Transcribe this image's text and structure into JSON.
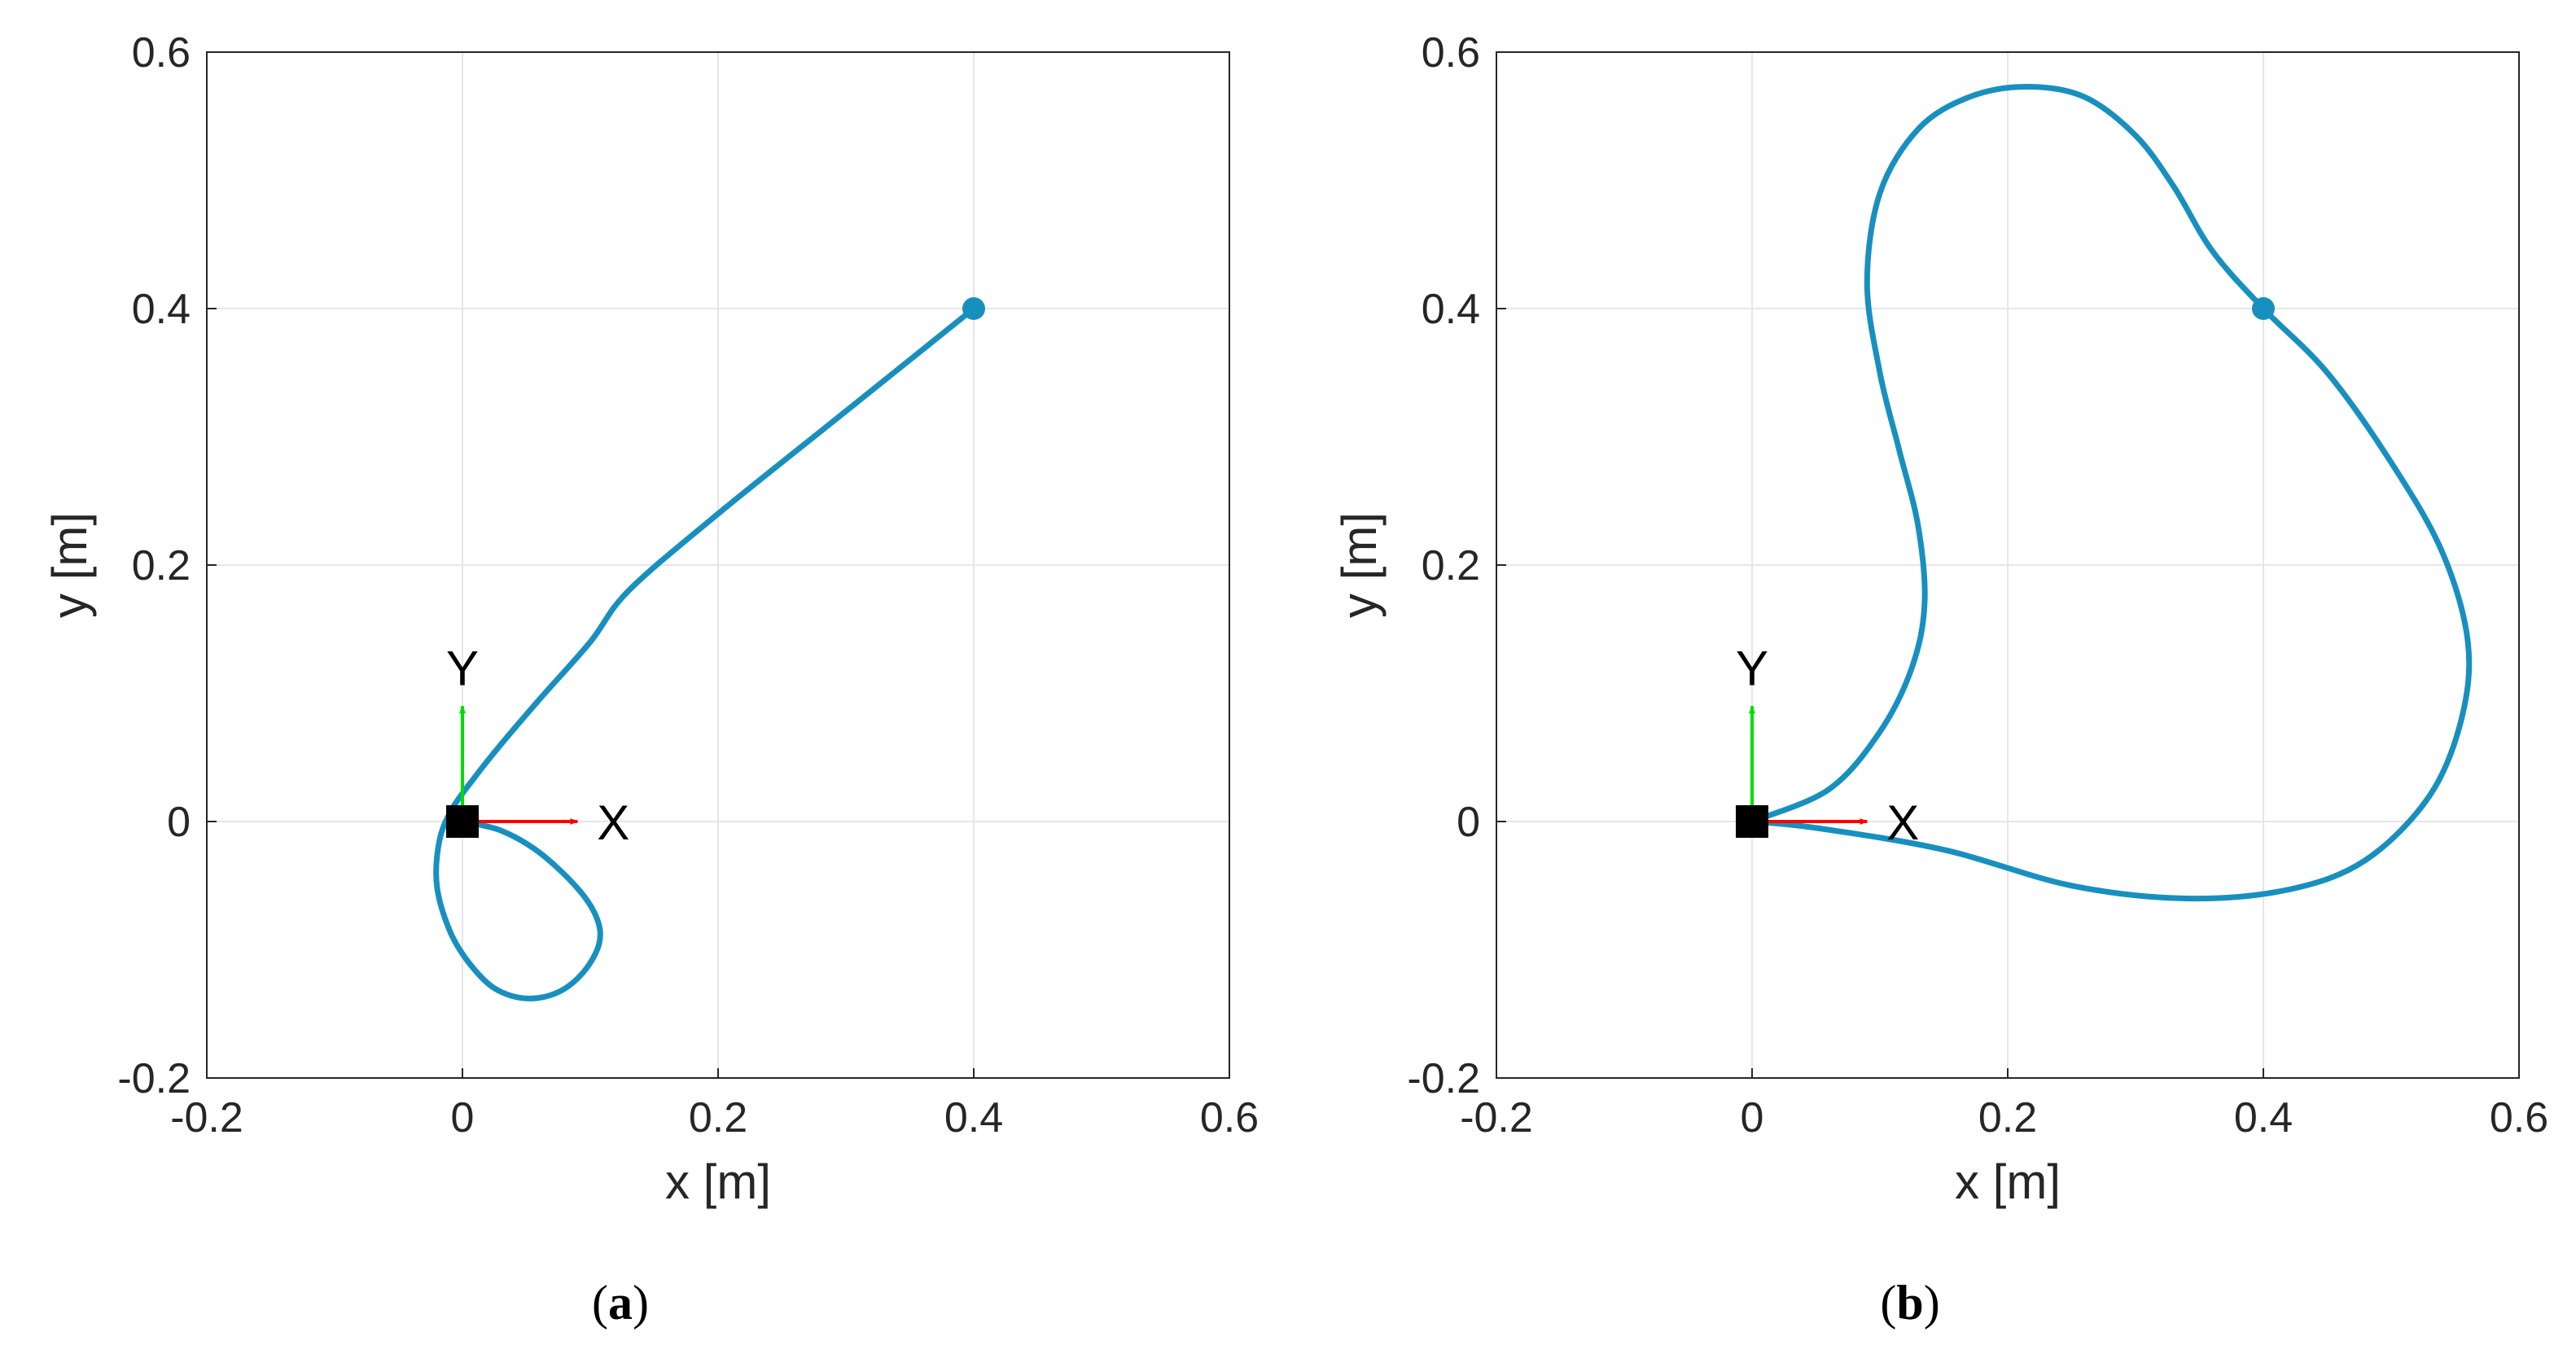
{
  "chart_data": [
    {
      "type": "line",
      "caption": {
        "open": "(",
        "letter": "a",
        "close": ")"
      },
      "xlabel": "x [m]",
      "ylabel": "y [m]",
      "xlim": [
        -0.2,
        0.6
      ],
      "ylim": [
        -0.2,
        0.6
      ],
      "xticks": [
        -0.2,
        0,
        0.2,
        0.4,
        0.6
      ],
      "xtick_labels": [
        "-0.2",
        "0",
        "0.2",
        "0.4",
        "0.6"
      ],
      "yticks": [
        -0.2,
        0,
        0.2,
        0.4,
        0.6
      ],
      "ytick_labels": [
        "-0.2",
        "0",
        "0.2",
        "0.4",
        "0.6"
      ],
      "grid": true,
      "line_color": "#1890BF",
      "series": [
        {
          "name": "trajectory",
          "x": [
            0.0,
            0.03,
            0.06,
            0.09,
            0.105,
            0.107,
            0.095,
            0.075,
            0.05,
            0.025,
            0.005,
            -0.01,
            -0.02,
            -0.018,
            -0.008,
            0.01,
            0.03,
            0.06,
            0.1,
            0.13,
            0.2,
            0.3,
            0.4
          ],
          "y": [
            0.0,
            -0.007,
            -0.024,
            -0.052,
            -0.075,
            -0.095,
            -0.117,
            -0.133,
            -0.138,
            -0.13,
            -0.11,
            -0.085,
            -0.05,
            -0.015,
            0.01,
            0.035,
            0.06,
            0.095,
            0.14,
            0.18,
            0.24,
            0.32,
            0.4
          ]
        }
      ],
      "start_marker": {
        "x": 0.4,
        "y": 0.4,
        "color": "#1890BF"
      },
      "origin_marker": {
        "x": 0,
        "y": 0,
        "color": "#000000"
      },
      "frame": {
        "x_axis_label": "X",
        "y_axis_label": "Y",
        "x_axis_color": "#FF0000",
        "y_axis_color": "#00DD00",
        "arrow_length": 0.09
      }
    },
    {
      "type": "line",
      "caption": {
        "open": "(",
        "letter": "b",
        "close": ")"
      },
      "xlabel": "x [m]",
      "ylabel": "y [m]",
      "xlim": [
        -0.2,
        0.6
      ],
      "ylim": [
        -0.2,
        0.6
      ],
      "xticks": [
        -0.2,
        0,
        0.2,
        0.4,
        0.6
      ],
      "xtick_labels": [
        "-0.2",
        "0",
        "0.2",
        "0.4",
        "0.6"
      ],
      "yticks": [
        -0.2,
        0,
        0.2,
        0.4,
        0.6
      ],
      "ytick_labels": [
        "-0.2",
        "0",
        "0.2",
        "0.4",
        "0.6"
      ],
      "grid": true,
      "line_color": "#1890BF",
      "series": [
        {
          "name": "trajectory",
          "x": [
            0.0,
            0.06,
            0.1,
            0.125,
            0.135,
            0.13,
            0.115,
            0.1,
            0.09,
            0.1,
            0.13,
            0.17,
            0.215,
            0.26,
            0.3,
            0.33,
            0.36,
            0.4,
            0.45,
            0.5,
            0.54,
            0.56,
            0.555,
            0.53,
            0.48,
            0.42,
            0.34,
            0.25,
            0.15,
            0.05,
            0.0
          ],
          "y": [
            0.0,
            0.025,
            0.07,
            0.12,
            0.17,
            0.23,
            0.29,
            0.35,
            0.42,
            0.49,
            0.54,
            0.565,
            0.573,
            0.565,
            0.535,
            0.495,
            0.445,
            0.4,
            0.35,
            0.28,
            0.21,
            0.14,
            0.08,
            0.02,
            -0.03,
            -0.053,
            -0.06,
            -0.05,
            -0.022,
            -0.005,
            0.0
          ]
        }
      ],
      "start_marker": {
        "x": 0.4,
        "y": 0.4,
        "color": "#1890BF"
      },
      "origin_marker": {
        "x": 0,
        "y": 0,
        "color": "#000000"
      },
      "frame": {
        "x_axis_label": "X",
        "y_axis_label": "Y",
        "x_axis_color": "#FF0000",
        "y_axis_color": "#00DD00",
        "arrow_length": 0.09
      }
    }
  ]
}
